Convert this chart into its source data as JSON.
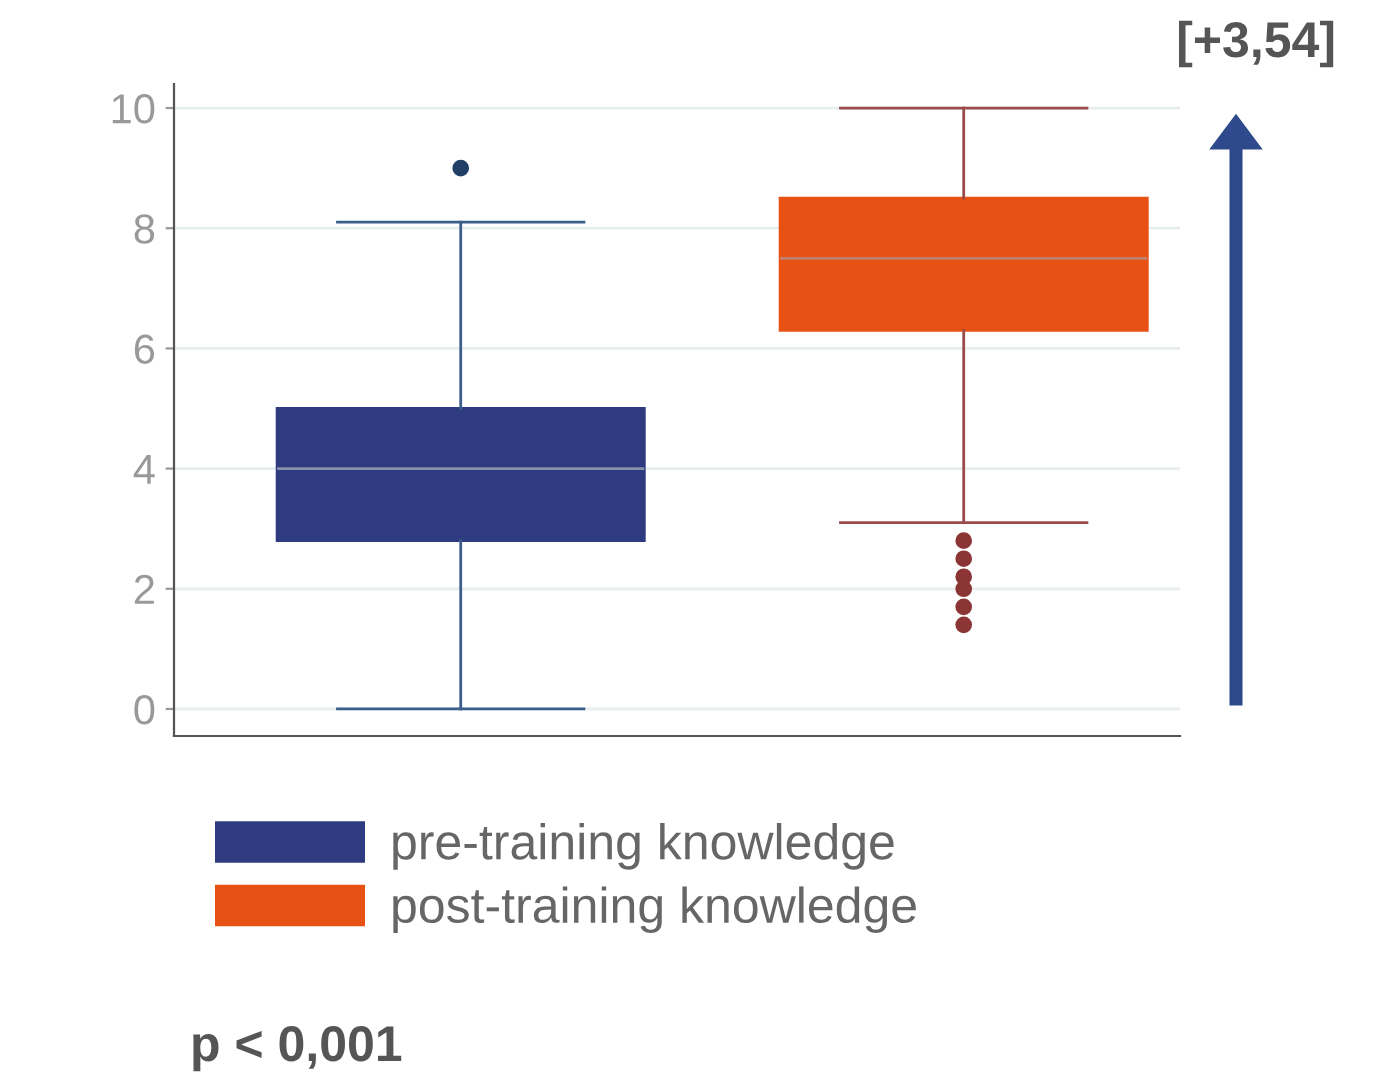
{
  "chart_data": {
    "type": "box",
    "categories": [
      null,
      null
    ],
    "series": [
      {
        "name": "pre-training knowledge",
        "color": "#2e3b80",
        "boxes": [
          {
            "low": 0,
            "q1": 2.8,
            "median": 4,
            "q3": 5,
            "high": 8.1,
            "outliers": [
              9
            ]
          },
          null
        ]
      },
      {
        "name": "post-training knowledge",
        "color": "#e85114",
        "boxes": [
          null,
          {
            "low": 3.1,
            "q1": 6.3,
            "median": 7.5,
            "q3": 8.5,
            "high": 10,
            "outliers": [
              2.8,
              2.5,
              2.2,
              2.0,
              1.7,
              1.4
            ]
          }
        ]
      }
    ],
    "ylim": [
      -0.45,
      10.4
    ],
    "yticks": [
      0,
      2,
      4,
      6,
      8,
      10
    ],
    "grid": "y",
    "legend": "bottom",
    "annotations": [
      "[+3,54]",
      "p < 0,001"
    ]
  }
}
